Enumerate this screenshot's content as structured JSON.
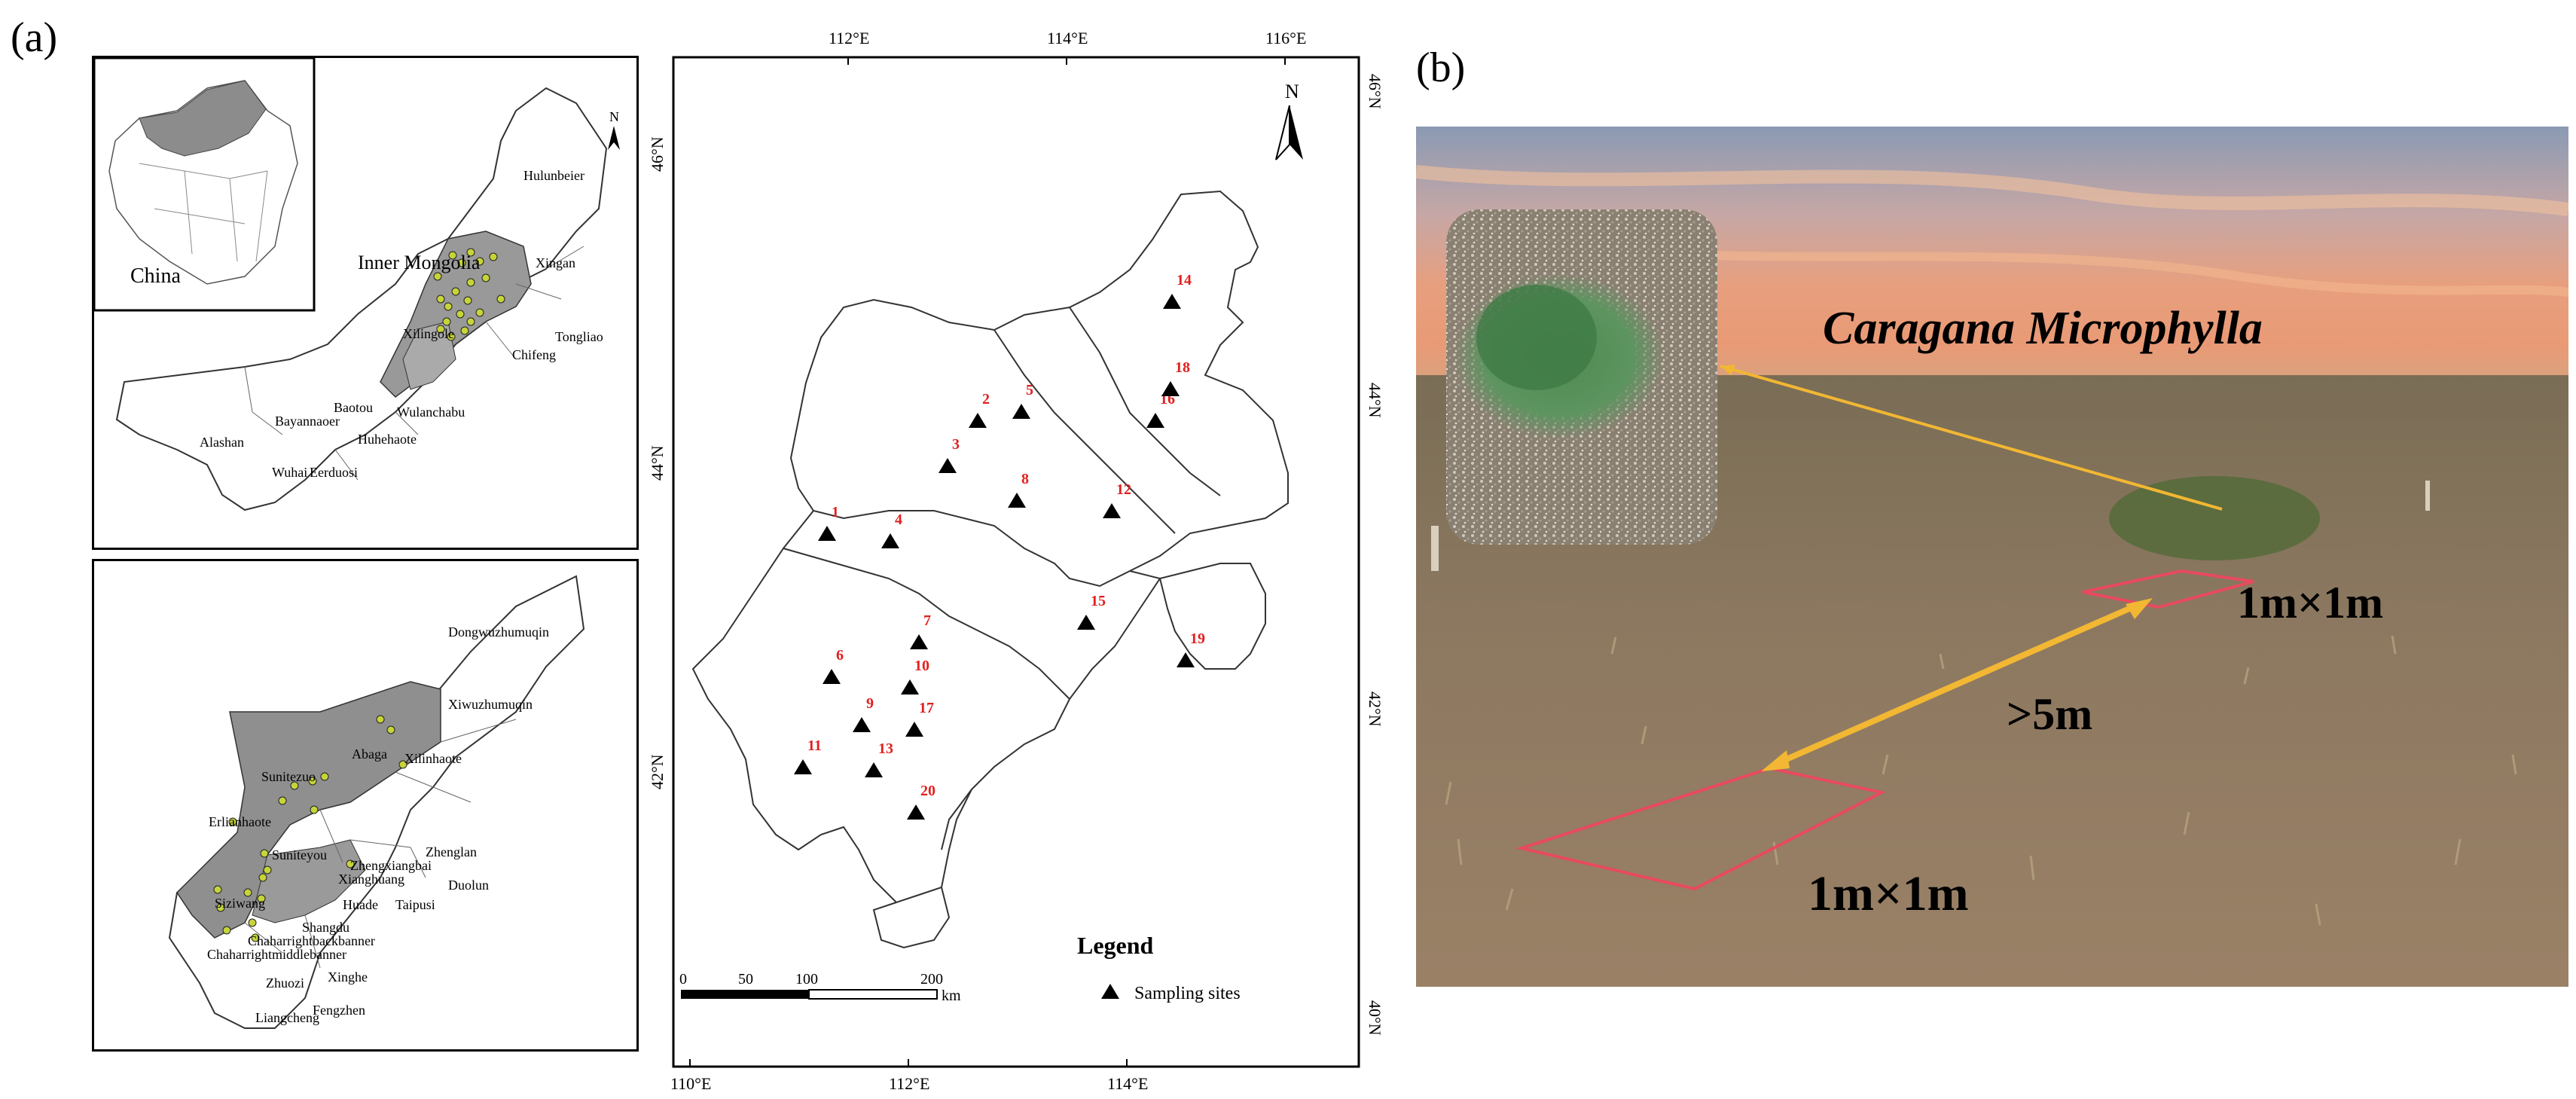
{
  "panels": {
    "a": "(a)",
    "b": "(b)"
  },
  "inset": {
    "country": "China",
    "region": "Inner Mongolia",
    "north_label": "N"
  },
  "im_leagues": [
    "Hulunbeier",
    "Xingan",
    "Tongliao",
    "Chifeng",
    "Xilingole",
    "Wulanchabu",
    "Huhehaote",
    "Baotou",
    "Bayannaoer",
    "Alashan",
    "Wuhai",
    "Eerduosi"
  ],
  "xilingol_banners": [
    "Dongwuzhumuqin",
    "Xiwuzhumuqin",
    "Abaga",
    "Xilinhaote",
    "Sunitezuo",
    "Erlianhaote",
    "Suniteyou",
    "Zhenglan",
    "Zhengxiangbai",
    "Xianghuang",
    "Duolun",
    "Taipusi",
    "Huade",
    "Siziwang",
    "Shangdu",
    "Chaharrightbackbanner",
    "Chaharrightmiddlebanner",
    "Xinghe",
    "Zhuozi",
    "Fengzhen",
    "Liangcheng"
  ],
  "study_map": {
    "lon_ticks": [
      "112°E",
      "114°E",
      "116°E"
    ],
    "lon_ticks_bottom": [
      "110°E",
      "112°E",
      "114°E"
    ],
    "lat_ticks_left": [
      "46°N",
      "44°N",
      "42°N"
    ],
    "lat_ticks_right": [
      "46°N",
      "44°N",
      "42°N",
      "40°N"
    ],
    "north_label": "N",
    "scale_labels": [
      "0",
      "50",
      "100",
      "200"
    ],
    "scale_unit": "km",
    "legend_title": "Legend",
    "legend_item": "Sampling sites",
    "sites": [
      "1",
      "2",
      "3",
      "4",
      "5",
      "6",
      "7",
      "8",
      "9",
      "10",
      "11",
      "12",
      "13",
      "14",
      "15",
      "16",
      "17",
      "18",
      "19",
      "20"
    ]
  },
  "photo": {
    "species": "Caragana Microphylla",
    "quadrat_label_1": "1m×1m",
    "quadrat_label_2": "1m×1m",
    "distance_label": ">5m"
  }
}
